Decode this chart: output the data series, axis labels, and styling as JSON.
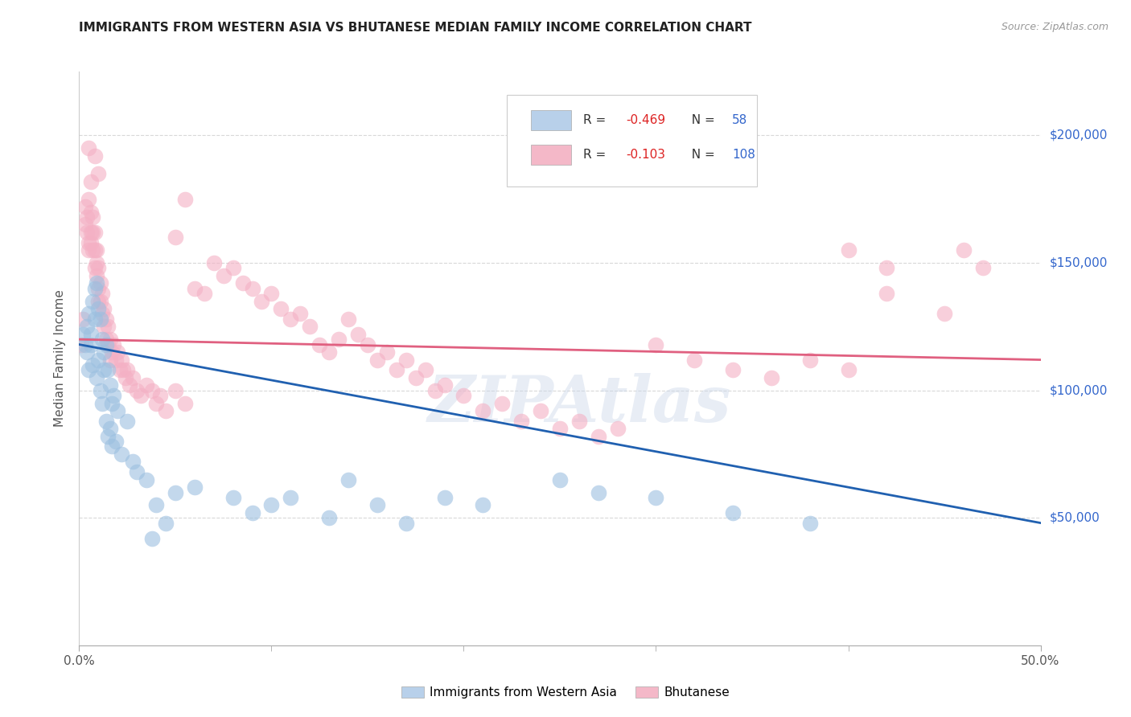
{
  "title": "IMMIGRANTS FROM WESTERN ASIA VS BHUTANESE MEDIAN FAMILY INCOME CORRELATION CHART",
  "source": "Source: ZipAtlas.com",
  "ylabel": "Median Family Income",
  "ytick_labels": [
    "$50,000",
    "$100,000",
    "$150,000",
    "$200,000"
  ],
  "ytick_values": [
    50000,
    100000,
    150000,
    200000
  ],
  "ylim": [
    0,
    225000
  ],
  "xlim": [
    0.0,
    0.5
  ],
  "legend_entry1_r": "-0.469",
  "legend_entry1_n": "58",
  "legend_entry2_r": "-0.103",
  "legend_entry2_n": "108",
  "legend_color1": "#b8d0ea",
  "legend_color2": "#f4b8c8",
  "watermark": "ZIPAtlas",
  "blue_color": "#9bbfe0",
  "pink_color": "#f4b0c4",
  "blue_line_color": "#2060b0",
  "pink_line_color": "#e06080",
  "label_color_blue": "#3366cc",
  "label_color_red": "#dd2222",
  "grid_color": "#d8d8d8",
  "background_color": "#ffffff",
  "font_color": "#333333",
  "blue_scatter": [
    [
      0.002,
      122000
    ],
    [
      0.003,
      118000
    ],
    [
      0.004,
      125000
    ],
    [
      0.004,
      115000
    ],
    [
      0.005,
      130000
    ],
    [
      0.005,
      108000
    ],
    [
      0.006,
      122000
    ],
    [
      0.006,
      118000
    ],
    [
      0.007,
      135000
    ],
    [
      0.007,
      110000
    ],
    [
      0.008,
      140000
    ],
    [
      0.008,
      128000
    ],
    [
      0.009,
      142000
    ],
    [
      0.009,
      105000
    ],
    [
      0.01,
      132000
    ],
    [
      0.01,
      112000
    ],
    [
      0.011,
      128000
    ],
    [
      0.011,
      100000
    ],
    [
      0.012,
      120000
    ],
    [
      0.012,
      95000
    ],
    [
      0.013,
      115000
    ],
    [
      0.013,
      108000
    ],
    [
      0.014,
      118000
    ],
    [
      0.014,
      88000
    ],
    [
      0.015,
      108000
    ],
    [
      0.015,
      82000
    ],
    [
      0.016,
      102000
    ],
    [
      0.016,
      85000
    ],
    [
      0.017,
      95000
    ],
    [
      0.017,
      78000
    ],
    [
      0.018,
      98000
    ],
    [
      0.019,
      80000
    ],
    [
      0.02,
      92000
    ],
    [
      0.022,
      75000
    ],
    [
      0.025,
      88000
    ],
    [
      0.028,
      72000
    ],
    [
      0.03,
      68000
    ],
    [
      0.035,
      65000
    ],
    [
      0.038,
      42000
    ],
    [
      0.04,
      55000
    ],
    [
      0.045,
      48000
    ],
    [
      0.05,
      60000
    ],
    [
      0.06,
      62000
    ],
    [
      0.08,
      58000
    ],
    [
      0.09,
      52000
    ],
    [
      0.1,
      55000
    ],
    [
      0.11,
      58000
    ],
    [
      0.13,
      50000
    ],
    [
      0.14,
      65000
    ],
    [
      0.155,
      55000
    ],
    [
      0.17,
      48000
    ],
    [
      0.19,
      58000
    ],
    [
      0.21,
      55000
    ],
    [
      0.25,
      65000
    ],
    [
      0.27,
      60000
    ],
    [
      0.3,
      58000
    ],
    [
      0.34,
      52000
    ],
    [
      0.38,
      48000
    ]
  ],
  "pink_scatter": [
    [
      0.001,
      118000
    ],
    [
      0.002,
      128000
    ],
    [
      0.003,
      165000
    ],
    [
      0.003,
      172000
    ],
    [
      0.004,
      168000
    ],
    [
      0.004,
      162000
    ],
    [
      0.005,
      175000
    ],
    [
      0.005,
      158000
    ],
    [
      0.005,
      155000
    ],
    [
      0.006,
      170000
    ],
    [
      0.006,
      162000
    ],
    [
      0.006,
      158000
    ],
    [
      0.007,
      168000
    ],
    [
      0.007,
      162000
    ],
    [
      0.007,
      155000
    ],
    [
      0.008,
      162000
    ],
    [
      0.008,
      155000
    ],
    [
      0.008,
      148000
    ],
    [
      0.009,
      155000
    ],
    [
      0.009,
      150000
    ],
    [
      0.009,
      145000
    ],
    [
      0.01,
      148000
    ],
    [
      0.01,
      140000
    ],
    [
      0.01,
      135000
    ],
    [
      0.011,
      142000
    ],
    [
      0.011,
      135000
    ],
    [
      0.012,
      138000
    ],
    [
      0.012,
      130000
    ],
    [
      0.013,
      132000
    ],
    [
      0.013,
      125000
    ],
    [
      0.014,
      128000
    ],
    [
      0.014,
      120000
    ],
    [
      0.015,
      125000
    ],
    [
      0.015,
      118000
    ],
    [
      0.016,
      120000
    ],
    [
      0.016,
      112000
    ],
    [
      0.017,
      115000
    ],
    [
      0.018,
      118000
    ],
    [
      0.019,
      112000
    ],
    [
      0.02,
      115000
    ],
    [
      0.021,
      108000
    ],
    [
      0.022,
      112000
    ],
    [
      0.023,
      108000
    ],
    [
      0.024,
      105000
    ],
    [
      0.025,
      108000
    ],
    [
      0.026,
      102000
    ],
    [
      0.028,
      105000
    ],
    [
      0.03,
      100000
    ],
    [
      0.032,
      98000
    ],
    [
      0.035,
      102000
    ],
    [
      0.038,
      100000
    ],
    [
      0.04,
      95000
    ],
    [
      0.042,
      98000
    ],
    [
      0.045,
      92000
    ],
    [
      0.05,
      100000
    ],
    [
      0.055,
      95000
    ],
    [
      0.06,
      140000
    ],
    [
      0.065,
      138000
    ],
    [
      0.07,
      150000
    ],
    [
      0.075,
      145000
    ],
    [
      0.08,
      148000
    ],
    [
      0.085,
      142000
    ],
    [
      0.09,
      140000
    ],
    [
      0.095,
      135000
    ],
    [
      0.1,
      138000
    ],
    [
      0.105,
      132000
    ],
    [
      0.11,
      128000
    ],
    [
      0.115,
      130000
    ],
    [
      0.12,
      125000
    ],
    [
      0.125,
      118000
    ],
    [
      0.13,
      115000
    ],
    [
      0.135,
      120000
    ],
    [
      0.14,
      128000
    ],
    [
      0.145,
      122000
    ],
    [
      0.15,
      118000
    ],
    [
      0.155,
      112000
    ],
    [
      0.16,
      115000
    ],
    [
      0.165,
      108000
    ],
    [
      0.17,
      112000
    ],
    [
      0.175,
      105000
    ],
    [
      0.18,
      108000
    ],
    [
      0.185,
      100000
    ],
    [
      0.19,
      102000
    ],
    [
      0.2,
      98000
    ],
    [
      0.21,
      92000
    ],
    [
      0.22,
      95000
    ],
    [
      0.23,
      88000
    ],
    [
      0.24,
      92000
    ],
    [
      0.25,
      85000
    ],
    [
      0.26,
      88000
    ],
    [
      0.27,
      82000
    ],
    [
      0.28,
      85000
    ],
    [
      0.3,
      118000
    ],
    [
      0.32,
      112000
    ],
    [
      0.34,
      108000
    ],
    [
      0.36,
      105000
    ],
    [
      0.38,
      112000
    ],
    [
      0.4,
      108000
    ],
    [
      0.42,
      138000
    ],
    [
      0.45,
      130000
    ],
    [
      0.46,
      155000
    ],
    [
      0.47,
      148000
    ],
    [
      0.005,
      195000
    ],
    [
      0.006,
      182000
    ],
    [
      0.008,
      192000
    ],
    [
      0.01,
      185000
    ],
    [
      0.05,
      160000
    ],
    [
      0.055,
      175000
    ],
    [
      0.4,
      155000
    ],
    [
      0.42,
      148000
    ]
  ],
  "blue_line_x": [
    0.0,
    0.5
  ],
  "blue_line_y": [
    118000,
    48000
  ],
  "pink_line_x": [
    0.0,
    0.5
  ],
  "pink_line_y": [
    120000,
    112000
  ]
}
